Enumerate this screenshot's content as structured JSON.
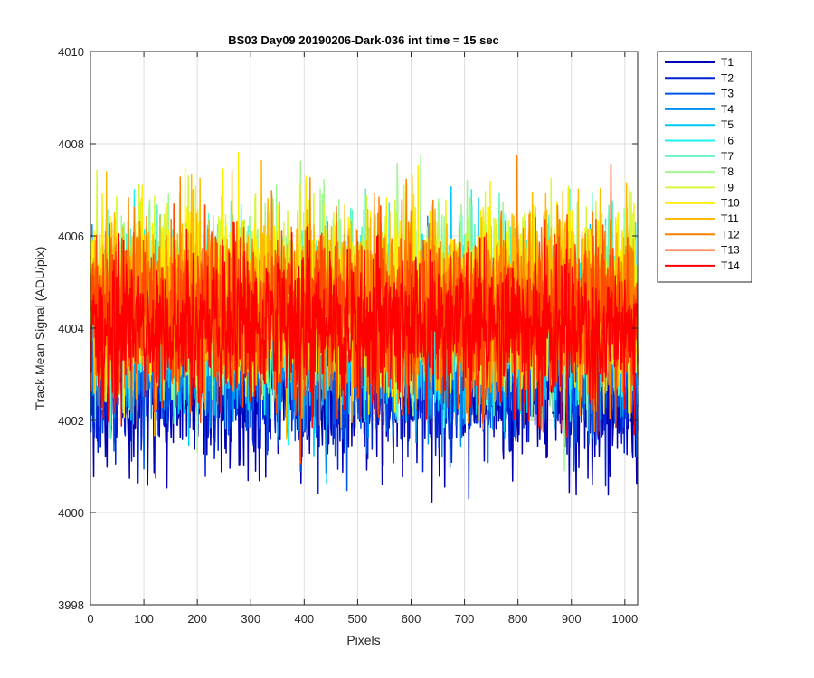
{
  "chart_data": {
    "type": "line",
    "title": "BS03 Day09 20190206-Dark-036 int time = 15 sec",
    "xlabel": "Pixels",
    "ylabel": "Track Mean Signal (ADU/pix)",
    "xlim": [
      0,
      1024
    ],
    "ylim": [
      3998,
      4010
    ],
    "xticks": [
      "0",
      "100",
      "200",
      "300",
      "400",
      "500",
      "600",
      "700",
      "800",
      "900",
      "1000"
    ],
    "yticks": [
      "3998",
      "4000",
      "4002",
      "4004",
      "4006",
      "4008",
      "4010"
    ],
    "grid": true,
    "legend_position": "outside-top-right",
    "x_start": 1,
    "x_end": 1024,
    "series": [
      {
        "name": "T1",
        "color": "#0000b3",
        "mean": 4002.6,
        "spread": 0.8
      },
      {
        "name": "T2",
        "color": "#0022d4",
        "mean": 4003.0,
        "spread": 0.8
      },
      {
        "name": "T3",
        "color": "#0055e8",
        "mean": 4003.3,
        "spread": 0.8
      },
      {
        "name": "T4",
        "color": "#0090f0",
        "mean": 4003.6,
        "spread": 0.85
      },
      {
        "name": "T5",
        "color": "#00c8f8",
        "mean": 4004.0,
        "spread": 0.9
      },
      {
        "name": "T6",
        "color": "#1ff0f0",
        "mean": 4004.3,
        "spread": 0.9
      },
      {
        "name": "T7",
        "color": "#5ff5c0",
        "mean": 4004.5,
        "spread": 0.95
      },
      {
        "name": "T8",
        "color": "#a0f890",
        "mean": 4004.6,
        "spread": 0.95
      },
      {
        "name": "T9",
        "color": "#d6f83c",
        "mean": 4004.7,
        "spread": 0.95
      },
      {
        "name": "T10",
        "color": "#ffee00",
        "mean": 4004.7,
        "spread": 0.95
      },
      {
        "name": "T11",
        "color": "#ffbb00",
        "mean": 4004.6,
        "spread": 0.95
      },
      {
        "name": "T12",
        "color": "#ff8000",
        "mean": 4004.5,
        "spread": 0.95
      },
      {
        "name": "T13",
        "color": "#ff4800",
        "mean": 4004.3,
        "spread": 0.9
      },
      {
        "name": "T14",
        "color": "#ff0000",
        "mean": 4004.0,
        "spread": 0.85
      }
    ]
  }
}
